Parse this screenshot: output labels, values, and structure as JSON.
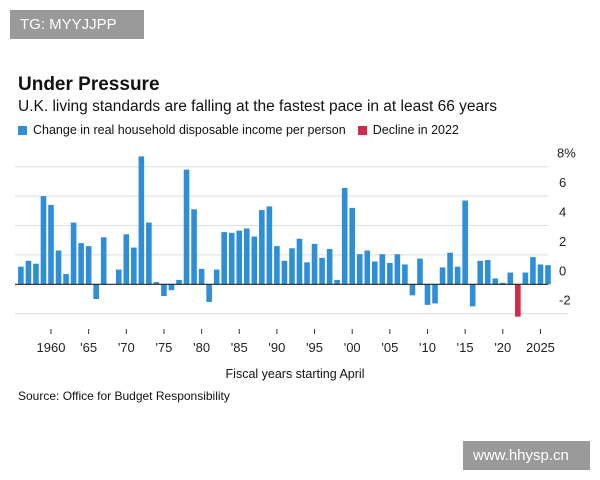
{
  "watermarks": {
    "top_left": "TG: MYYJJPP",
    "bottom_right": "www.hhysp.cn"
  },
  "chart_data": {
    "type": "bar",
    "title": "Under Pressure",
    "subtitle": "U.K. living standards are falling at the fastest pace in at least 66 years",
    "legend": [
      {
        "label": "Change in real household disposable income per person",
        "color": "#2f8fd6"
      },
      {
        "label": "Decline in 2022",
        "color": "#d12a4a"
      }
    ],
    "xlabel": "Fiscal years starting April",
    "ylabel": "",
    "ylim": [
      -2,
      8
    ],
    "yticks": [
      {
        "v": 8,
        "label": "8%"
      },
      {
        "v": 6,
        "label": "6"
      },
      {
        "v": 4,
        "label": "4"
      },
      {
        "v": 2,
        "label": "2"
      },
      {
        "v": 0,
        "label": "0"
      },
      {
        "v": -2,
        "label": "-2"
      }
    ],
    "xticks": [
      {
        "year": 1960,
        "label": "1960"
      },
      {
        "year": 1965,
        "label": "'65"
      },
      {
        "year": 1970,
        "label": "'70"
      },
      {
        "year": 1975,
        "label": "'75"
      },
      {
        "year": 1980,
        "label": "'80"
      },
      {
        "year": 1985,
        "label": "'85"
      },
      {
        "year": 1990,
        "label": "'90"
      },
      {
        "year": 1995,
        "label": "'95"
      },
      {
        "year": 2000,
        "label": "'00"
      },
      {
        "year": 2005,
        "label": "'05"
      },
      {
        "year": 2010,
        "label": "'10"
      },
      {
        "year": 2015,
        "label": "'15"
      },
      {
        "year": 2020,
        "label": "'20"
      },
      {
        "year": 2025,
        "label": "2025"
      }
    ],
    "start_year": 1956,
    "highlight_year": 2022,
    "values": [
      1.2,
      1.6,
      1.4,
      6.0,
      5.4,
      2.3,
      0.7,
      4.2,
      2.8,
      2.6,
      -1.0,
      3.2,
      0,
      1.0,
      3.4,
      2.5,
      8.7,
      4.2,
      0.15,
      -0.8,
      -0.4,
      0.3,
      7.8,
      5.1,
      1.05,
      -1.2,
      1.0,
      3.55,
      3.5,
      3.65,
      3.8,
      3.25,
      5.05,
      5.3,
      2.6,
      1.6,
      2.45,
      3.1,
      1.5,
      2.75,
      1.8,
      2.4,
      0.3,
      6.55,
      5.2,
      2.05,
      2.3,
      1.55,
      2.05,
      1.45,
      2.05,
      1.35,
      -0.75,
      1.75,
      -1.4,
      -1.3,
      1.15,
      2.15,
      1.2,
      5.7,
      -1.5,
      1.6,
      1.65,
      0.4,
      0.1,
      0.8,
      -2.2,
      0.8,
      1.85,
      1.35,
      1.3
    ]
  },
  "source": "Source: Office for Budget Responsibility"
}
